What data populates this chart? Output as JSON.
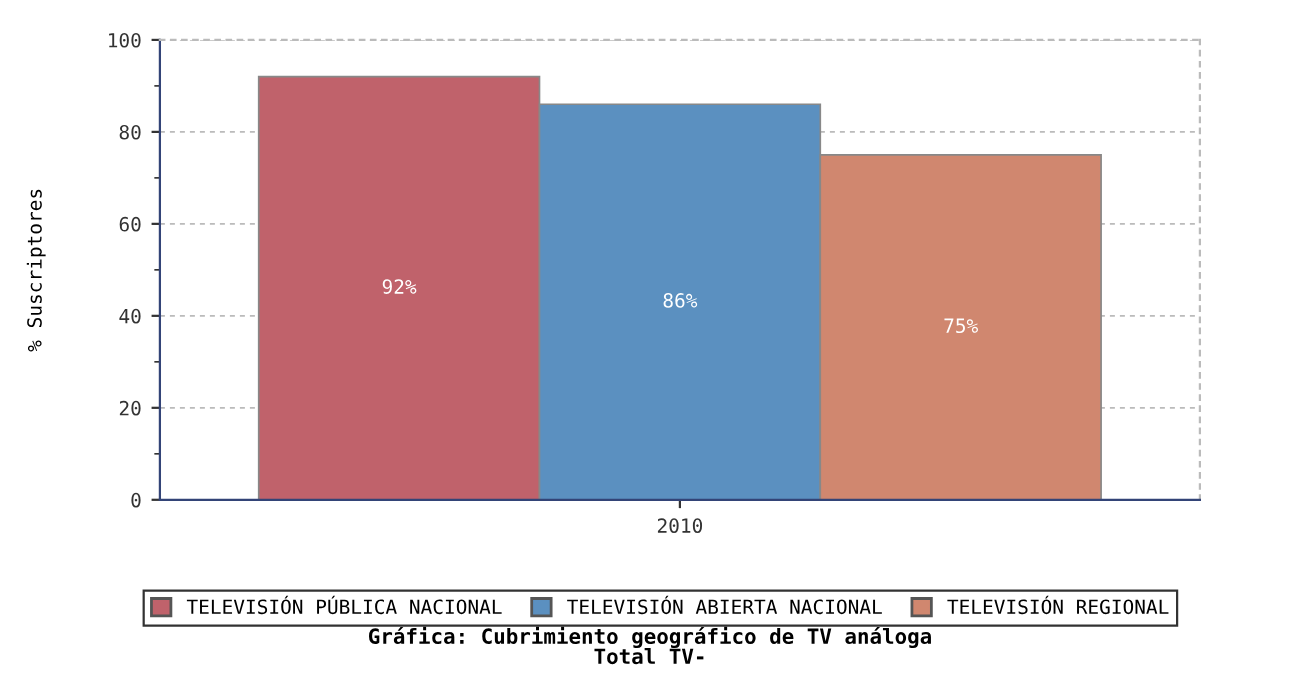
{
  "chart_data": {
    "type": "bar",
    "title": "Gráfica: Cubrimiento geográfico de TV análoga\nTotal TV-",
    "ylabel": "% Suscriptores",
    "categories": [
      "2010"
    ],
    "series": [
      {
        "name": "TELEVISIÓN PÚBLICA NACIONAL",
        "color": "#c0626b",
        "values": [
          92
        ],
        "value_labels": [
          "92%"
        ]
      },
      {
        "name": "TELEVISIÓN ABIERTA NACIONAL",
        "color": "#5b90c0",
        "values": [
          86
        ],
        "value_labels": [
          "86%"
        ]
      },
      {
        "name": "TELEVISIÓN REGIONAL",
        "color": "#d0876f",
        "values": [
          75
        ],
        "value_labels": [
          "75%"
        ]
      }
    ],
    "ylim": [
      0,
      100
    ],
    "yticks": [
      0,
      {
        "value": 10,
        "label": null
      },
      20,
      {
        "value": 30,
        "label": null
      },
      40,
      {
        "value": 50,
        "label": null
      },
      60,
      {
        "value": 70,
        "label": null
      },
      80,
      {
        "value": 90,
        "label": null
      },
      100
    ],
    "grid": "y",
    "legend": "bottom"
  }
}
